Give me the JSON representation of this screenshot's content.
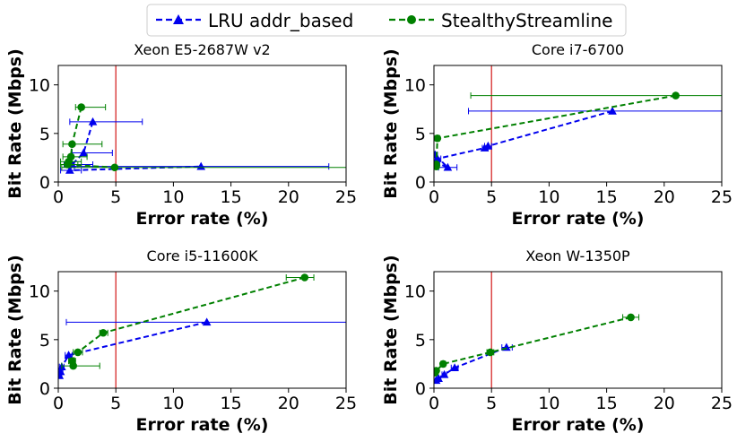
{
  "legend": {
    "entries": [
      {
        "label": "LRU addr_based",
        "color": "#0000ee",
        "marker": "triangle"
      },
      {
        "label": "StealthyStreamline",
        "color": "#008000",
        "marker": "circle"
      }
    ]
  },
  "chart_data": [
    {
      "type": "line",
      "title": "Xeon E5-2687W v2",
      "xlabel": "Error rate (%)",
      "ylabel": "Bit Rate (Mbps)",
      "xlim": [
        0,
        25
      ],
      "ylim": [
        0,
        12
      ],
      "xticks": [
        "0",
        "5",
        "10",
        "15",
        "20",
        "25"
      ],
      "yticks": [
        "0",
        "5",
        "10"
      ],
      "threshold_x": 5,
      "series": [
        {
          "name": "LRU addr_based",
          "x": [
            3.0,
            2.2,
            1.2,
            1.0,
            12.4
          ],
          "y": [
            6.2,
            3.0,
            1.8,
            1.2,
            1.6
          ],
          "xerr": [
            [
              1.0,
              7.3
            ],
            [
              1.2,
              4.7
            ],
            [
              0.5,
              3.0
            ],
            [
              0.2,
              2.0
            ],
            [
              1.4,
              23.5
            ]
          ]
        },
        {
          "name": "StealthyStreamline",
          "x": [
            2.0,
            1.2,
            1.1,
            0.9,
            0.8,
            4.9
          ],
          "y": [
            7.7,
            3.9,
            2.6,
            2.1,
            1.8,
            1.5
          ],
          "xerr": [
            [
              1.5,
              4.1
            ],
            [
              0.4,
              3.8
            ],
            [
              0.4,
              2.5
            ],
            [
              0.2,
              2.0
            ],
            [
              0.2,
              1.7
            ],
            [
              0.3,
              25.0
            ]
          ]
        }
      ]
    },
    {
      "type": "line",
      "title": "Core i7-6700",
      "xlabel": "Error rate (%)",
      "ylabel": "Bit Rate (Mbps)",
      "xlim": [
        0,
        25
      ],
      "ylim": [
        0,
        12
      ],
      "xticks": [
        "0",
        "5",
        "10",
        "15",
        "20",
        "25"
      ],
      "yticks": [
        "0",
        "5",
        "10"
      ],
      "threshold_x": 5,
      "series": [
        {
          "name": "LRU addr_based",
          "x": [
            15.5,
            4.7,
            4.4,
            0.3,
            0.1,
            1.2,
            0.2
          ],
          "y": [
            7.3,
            3.7,
            3.5,
            2.4,
            2.8,
            1.5,
            2.0
          ],
          "xerr": [
            [
              3.0,
              25.0
            ],
            [
              4.4,
              5.0
            ],
            [
              4.2,
              4.7
            ],
            [
              0.1,
              0.6
            ],
            [
              0.0,
              0.3
            ],
            [
              0.4,
              2.0
            ],
            [
              0.0,
              0.5
            ]
          ]
        },
        {
          "name": "StealthyStreamline",
          "x": [
            21.0,
            0.3,
            0.2,
            0.2
          ],
          "y": [
            8.9,
            4.5,
            1.8,
            1.6
          ],
          "xerr": [
            [
              3.2,
              25.0
            ],
            [
              0.1,
              0.5
            ],
            [
              0.0,
              0.4
            ],
            [
              0.0,
              0.4
            ]
          ]
        }
      ]
    },
    {
      "type": "line",
      "title": "Core i5-11600K",
      "xlabel": "Error rate (%)",
      "ylabel": "Bit Rate (Mbps)",
      "xlim": [
        0,
        25
      ],
      "ylim": [
        0,
        12
      ],
      "xticks": [
        "0",
        "5",
        "10",
        "15",
        "20",
        "25"
      ],
      "yticks": [
        "0",
        "5",
        "10"
      ],
      "threshold_x": 5,
      "series": [
        {
          "name": "LRU addr_based",
          "x": [
            12.9,
            0.9,
            0.3,
            0.2,
            0.1
          ],
          "y": [
            6.8,
            3.4,
            2.2,
            1.7,
            1.3
          ],
          "xerr": [
            [
              0.7,
              25.0
            ],
            [
              0.6,
              1.2
            ],
            [
              0.1,
              0.5
            ],
            [
              0.0,
              0.4
            ],
            [
              0.0,
              0.3
            ]
          ]
        },
        {
          "name": "StealthyStreamline",
          "x": [
            21.4,
            3.9,
            1.7,
            1.2,
            1.3
          ],
          "y": [
            11.4,
            5.7,
            3.7,
            2.8,
            2.3
          ],
          "xerr": [
            [
              19.8,
              22.2
            ],
            [
              3.6,
              4.3
            ],
            [
              1.3,
              2.1
            ],
            [
              0.9,
              1.5
            ],
            [
              0.3,
              3.6
            ]
          ]
        }
      ]
    },
    {
      "type": "line",
      "title": "Xeon W-1350P",
      "xlabel": "Error rate (%)",
      "ylabel": "Bit Rate (Mbps)",
      "xlim": [
        0,
        25
      ],
      "ylim": [
        0,
        12
      ],
      "xticks": [
        "0",
        "5",
        "10",
        "15",
        "20",
        "25"
      ],
      "yticks": [
        "0",
        "5",
        "10"
      ],
      "threshold_x": 5,
      "series": [
        {
          "name": "LRU addr_based",
          "x": [
            6.3,
            1.8,
            0.9,
            0.4,
            0.2
          ],
          "y": [
            4.2,
            2.1,
            1.4,
            1.0,
            0.8
          ],
          "xerr": [
            [
              5.9,
              6.8
            ],
            [
              1.5,
              2.1
            ],
            [
              0.7,
              1.1
            ],
            [
              0.3,
              0.6
            ],
            [
              0.1,
              0.3
            ]
          ]
        },
        {
          "name": "StealthyStreamline",
          "x": [
            17.1,
            4.9,
            0.8,
            0.2,
            0.1
          ],
          "y": [
            7.3,
            3.7,
            2.5,
            1.8,
            1.6
          ],
          "xerr": [
            [
              16.4,
              17.8
            ],
            [
              4.6,
              5.2
            ],
            [
              0.6,
              1.0
            ],
            [
              0.1,
              0.3
            ],
            [
              0.0,
              0.2
            ]
          ]
        }
      ]
    }
  ]
}
